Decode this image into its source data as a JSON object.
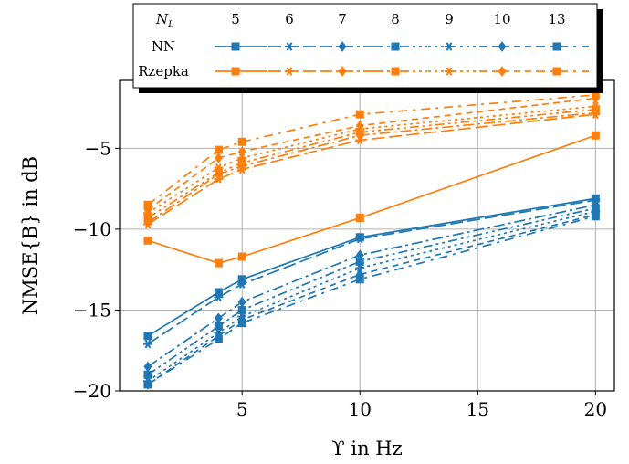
{
  "chart_data": {
    "type": "line",
    "xlabel": "ϒ in Hz",
    "ylabel": "NMSE{B} in dB",
    "xlim": [
      -0.2,
      20.8
    ],
    "ylim": [
      -20,
      -0.8
    ],
    "xticks": [
      5,
      10,
      15,
      20
    ],
    "xtick_labels": [
      "5",
      "10",
      "15",
      "20"
    ],
    "yticks": [
      -5,
      -10,
      -15,
      -20
    ],
    "ytick_labels": [
      "−5",
      "−10",
      "−15",
      "−20"
    ],
    "grid": true,
    "legend": {
      "placement": "top",
      "header_label": "N",
      "header_subscript": "L",
      "columns": [
        "5",
        "6",
        "7",
        "8",
        "9",
        "10",
        "13"
      ],
      "rows": [
        "NN",
        "Rzepka"
      ]
    },
    "x": [
      1,
      4,
      5,
      10,
      20
    ],
    "colors": {
      "NN": "#1f77b4",
      "Rzepka": "#ff7f0e"
    },
    "series": [
      {
        "group": "NN",
        "n_l": "5",
        "marker": "square",
        "dash": "solid",
        "values": [
          -16.6,
          -13.9,
          -13.1,
          -10.5,
          -8.1
        ]
      },
      {
        "group": "NN",
        "n_l": "6",
        "marker": "star",
        "dash": "long",
        "values": [
          -17.1,
          -14.2,
          -13.4,
          -10.6,
          -8.2
        ]
      },
      {
        "group": "NN",
        "n_l": "7",
        "marker": "diamond",
        "dash": "dashdot",
        "values": [
          -18.5,
          -15.5,
          -14.5,
          -11.6,
          -8.5
        ]
      },
      {
        "group": "NN",
        "n_l": "8",
        "marker": "square",
        "dash": "dashdotdot",
        "values": [
          -19.0,
          -16.0,
          -15.0,
          -12.0,
          -8.7
        ]
      },
      {
        "group": "NN",
        "n_l": "9",
        "marker": "star",
        "dash": "dotted",
        "values": [
          -19.4,
          -16.4,
          -15.4,
          -12.4,
          -8.9
        ]
      },
      {
        "group": "NN",
        "n_l": "10",
        "marker": "diamond",
        "dash": "dashed",
        "values": [
          -19.6,
          -16.6,
          -15.6,
          -12.8,
          -9.1
        ]
      },
      {
        "group": "NN",
        "n_l": "13",
        "marker": "square",
        "dash": "dashdotloose",
        "values": [
          -19.6,
          -16.8,
          -15.8,
          -13.1,
          -9.2
        ]
      },
      {
        "group": "Rzepka",
        "n_l": "5",
        "marker": "square",
        "dash": "solid",
        "values": [
          -10.7,
          -12.1,
          -11.7,
          -9.3,
          -4.2
        ]
      },
      {
        "group": "Rzepka",
        "n_l": "6",
        "marker": "star",
        "dash": "long",
        "values": [
          -9.7,
          -6.9,
          -6.3,
          -4.5,
          -2.9
        ]
      },
      {
        "group": "Rzepka",
        "n_l": "7",
        "marker": "diamond",
        "dash": "dashdot",
        "values": [
          -9.6,
          -6.6,
          -6.1,
          -4.2,
          -2.8
        ]
      },
      {
        "group": "Rzepka",
        "n_l": "8",
        "marker": "square",
        "dash": "dashdotdot",
        "values": [
          -9.3,
          -6.5,
          -5.9,
          -4.0,
          -2.6
        ]
      },
      {
        "group": "Rzepka",
        "n_l": "9",
        "marker": "star",
        "dash": "dotted",
        "values": [
          -9.0,
          -6.2,
          -5.6,
          -3.8,
          -2.4
        ]
      },
      {
        "group": "Rzepka",
        "n_l": "10",
        "marker": "diamond",
        "dash": "dashed",
        "values": [
          -8.8,
          -5.6,
          -5.2,
          -3.6,
          -1.9
        ]
      },
      {
        "group": "Rzepka",
        "n_l": "13",
        "marker": "square",
        "dash": "dashdotloose",
        "values": [
          -8.5,
          -5.1,
          -4.6,
          -2.9,
          -1.7
        ]
      }
    ]
  }
}
